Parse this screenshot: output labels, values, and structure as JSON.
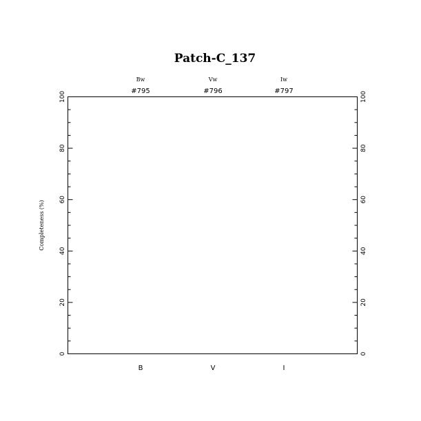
{
  "chart_data": {
    "type": "bar",
    "title": "Patch-C_137",
    "ylabel": "Completeness (%)",
    "xlabel": "",
    "ylim": [
      0,
      100
    ],
    "yticks": [
      "0",
      "20",
      "40",
      "60",
      "80",
      "100"
    ],
    "categories": [
      "B",
      "V",
      "I"
    ],
    "filters": [
      "Bw",
      "Vw",
      "Iw"
    ],
    "ids": [
      "#795",
      "#796",
      "#797"
    ],
    "values": [
      null,
      null,
      null
    ],
    "grid": false,
    "colors": {
      "axis": "#000000",
      "background": "#ffffff"
    }
  }
}
